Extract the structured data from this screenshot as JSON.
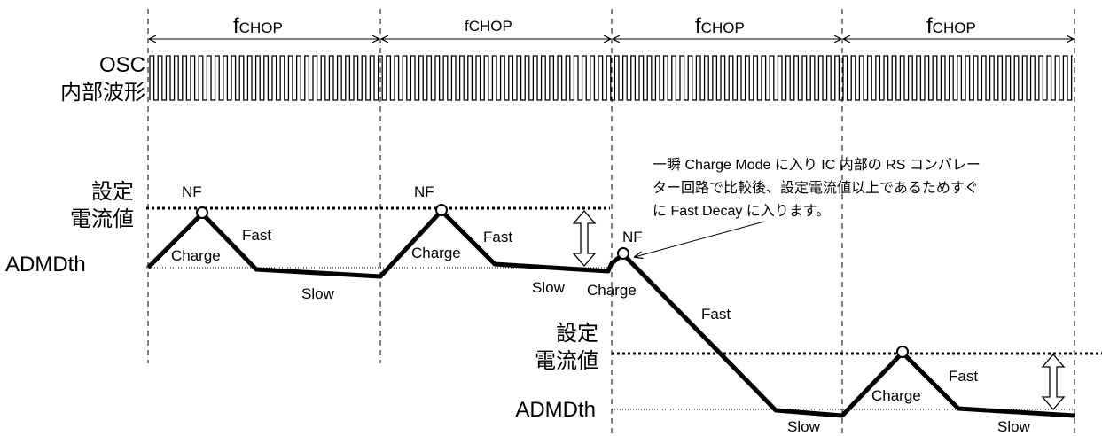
{
  "chop_label": {
    "main": "f",
    "sub": "CHOP"
  },
  "chop_label_alt": "fCHOP",
  "osc_label": [
    "OSC",
    "内部波形"
  ],
  "setting_label": [
    "設定",
    "電流値"
  ],
  "admdth_label": "ADMDth",
  "phase_labels": {
    "nf": "NF",
    "charge": "Charge",
    "fast": "Fast",
    "slow": "Slow"
  },
  "annotation": [
    "一瞬 Charge Mode に入り IC 内部の RS コンパレー",
    "ター回路で比較後、設定電流値以上であるためすぐ",
    "に Fast Decay に入ります。"
  ],
  "colors": {
    "line": "#000000",
    "background": "#ffffff"
  }
}
